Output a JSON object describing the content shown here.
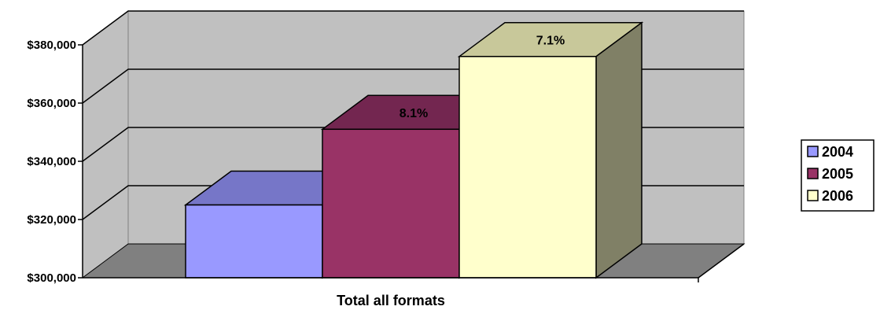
{
  "chart_data": {
    "type": "bar",
    "categories": [
      "Total all formats"
    ],
    "xlabel": "Total all formats",
    "ylim": [
      300000,
      380000
    ],
    "yticks": [
      {
        "value": 300000,
        "label": "$300,000"
      },
      {
        "value": 320000,
        "label": "$320,000"
      },
      {
        "value": 340000,
        "label": "$340,000"
      },
      {
        "value": 360000,
        "label": "$360,000"
      },
      {
        "value": 380000,
        "label": "$380,000"
      }
    ],
    "series": [
      {
        "name": "2004",
        "values": [
          325000
        ],
        "label": "",
        "color": "#9999ff",
        "top_color": "#7676c8",
        "side_color": "#5e5e9e"
      },
      {
        "name": "2005",
        "values": [
          351000
        ],
        "label": "8.1%",
        "color": "#993366",
        "top_color": "#732650",
        "side_color": "#5c1f3f"
      },
      {
        "name": "2006",
        "values": [
          376000
        ],
        "label": "7.1%",
        "color": "#ffffcc",
        "top_color": "#c8c89a",
        "side_color": "#808066"
      }
    ],
    "grid": true,
    "legend_position": "right",
    "wall_color": "#c0c0c0",
    "floor_color": "#808080"
  }
}
